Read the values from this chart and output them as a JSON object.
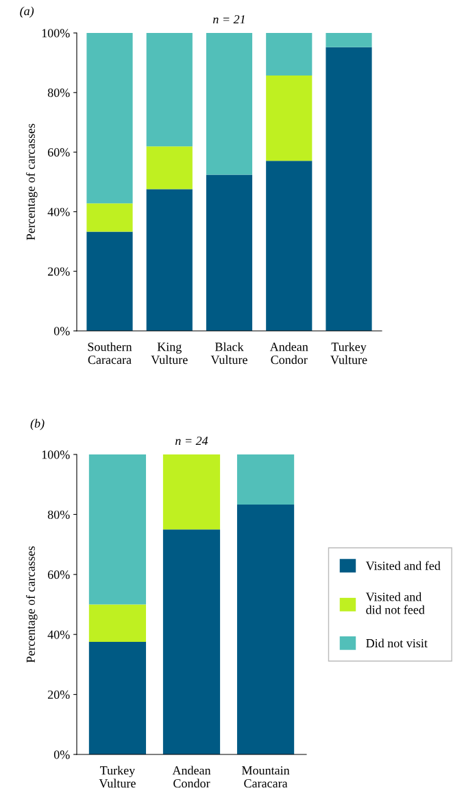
{
  "chart_data": [
    {
      "type": "bar",
      "stacked": true,
      "title": "n = 21",
      "ylabel": "Percentage of carcasses",
      "annotations": [
        "(a)"
      ],
      "categories": [
        "Southern\nCaracara",
        "King\nVulture",
        "Black\nVulture",
        "Andean\nCondor",
        "Turkey\nVulture"
      ],
      "series": [
        {
          "color": "#005a84",
          "values": [
            33.3,
            47.6,
            52.4,
            57.1,
            95.2
          ]
        },
        {
          "color": "#bff021",
          "values": [
            9.5,
            14.3,
            0,
            28.6,
            0
          ]
        },
        {
          "color": "#52bfb9",
          "values": [
            57.2,
            38.1,
            47.6,
            14.3,
            4.8
          ]
        }
      ],
      "ylim": [
        0,
        100
      ],
      "yticks": [
        {
          "value": 0,
          "label": "0%"
        },
        {
          "value": 20,
          "label": "20%"
        },
        {
          "value": 40,
          "label": "40%"
        },
        {
          "value": 60,
          "label": "60%"
        },
        {
          "value": 80,
          "label": "80%"
        },
        {
          "value": 100,
          "label": "100%"
        }
      ],
      "grid": false,
      "legend": false
    },
    {
      "type": "bar",
      "stacked": true,
      "title": "n = 24",
      "ylabel": "Percentage of carcasses",
      "annotations": [
        "(b)"
      ],
      "categories": [
        "Turkey\nVulture",
        "Andean\nCondor",
        "Mountain\nCaracara"
      ],
      "series": [
        {
          "name": "Visited and fed",
          "color": "#005a84",
          "values": [
            37.5,
            75,
            83.3
          ]
        },
        {
          "name": "Visited and\ndid not feed",
          "color": "#bff021",
          "values": [
            12.5,
            25,
            0
          ]
        },
        {
          "name": "Did not visit",
          "color": "#52bfb9",
          "values": [
            50,
            0,
            16.7
          ]
        }
      ],
      "ylim": [
        0,
        100
      ],
      "yticks": [
        {
          "value": 0,
          "label": "0%"
        },
        {
          "value": 20,
          "label": "20%"
        },
        {
          "value": 40,
          "label": "40%"
        },
        {
          "value": 60,
          "label": "60%"
        },
        {
          "value": 80,
          "label": "80%"
        },
        {
          "value": 100,
          "label": "100%"
        }
      ],
      "grid": false,
      "legend": "right"
    }
  ]
}
